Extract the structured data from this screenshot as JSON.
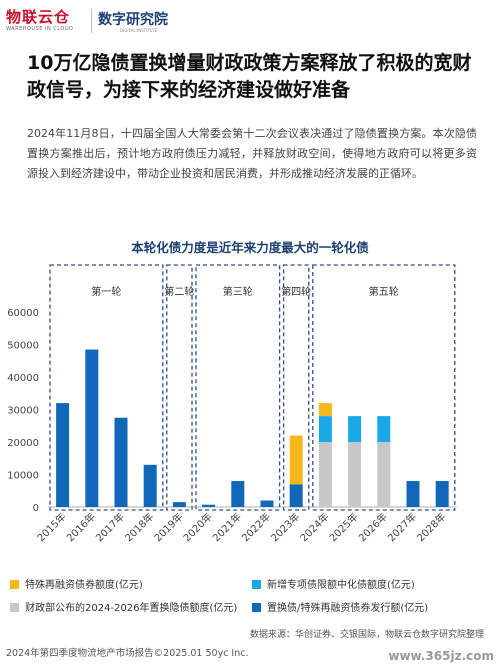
{
  "header": {
    "logo_main": "物联云仓",
    "logo_sub": "WAREHOUSE IN CLOUD",
    "dept": "数字研究院",
    "dept_sub": "DIGITAL INSTITUTE"
  },
  "title": "10万亿隐债置换增量财政政策方案释放了积极的宽财政信号，为接下来的经济建设做好准备",
  "paragraph": "2024年11月8日，十四届全国人大常委会第十二次会议表决通过了隐债置换方案。本次隐债置换方案推出后，预计地方政府债压力减轻，并释放财政空间，使得地方政府可以将更多资源投入到经济建设中，带动企业投资和居民消费，并形成推动经济发展的正循环。",
  "chart_data": {
    "type": "bar",
    "stacked": true,
    "title": "本轮化债力度是近年来力度最大的一轮化债",
    "categories": [
      "2015年",
      "2016年",
      "2017年",
      "2018年",
      "2019年",
      "2020年",
      "2021年",
      "2022年",
      "2023年",
      "2024年",
      "2025年",
      "2026年",
      "2027年",
      "2028年"
    ],
    "ylim": [
      0,
      65000
    ],
    "yticks": [
      0,
      10000,
      20000,
      30000,
      40000,
      50000,
      60000
    ],
    "colors": {
      "special_refi": "#f5b81c",
      "new_special": "#1ba8e8",
      "mof_quota": "#c8c8c8",
      "replacement": "#1268b8"
    },
    "series": [
      {
        "name": "置换债/特殊再融资债券发行额(亿元)",
        "key": "replacement",
        "values": [
          32000,
          48500,
          27500,
          13000,
          1500,
          700,
          8000,
          2000,
          7000,
          0,
          0,
          0,
          8000,
          8000
        ]
      },
      {
        "name": "财政部公布的2024-2026年置换隐债额度(亿元)",
        "key": "mof_quota",
        "values": [
          0,
          0,
          0,
          0,
          0,
          0,
          0,
          0,
          0,
          20000,
          20000,
          20000,
          0,
          0
        ]
      },
      {
        "name": "新增专项债限额中化债额度(亿元)",
        "key": "new_special",
        "values": [
          0,
          0,
          0,
          0,
          0,
          0,
          0,
          0,
          0,
          8000,
          8000,
          8000,
          0,
          0
        ]
      },
      {
        "name": "特殊再融资债券额度(亿元)",
        "key": "special_refi",
        "values": [
          0,
          0,
          0,
          0,
          0,
          0,
          0,
          0,
          15000,
          4000,
          0,
          0,
          0,
          0
        ]
      }
    ],
    "groups": [
      {
        "label": "第一轮",
        "start": 0,
        "end": 3
      },
      {
        "label": "第二轮",
        "start": 4,
        "end": 4
      },
      {
        "label": "第三轮",
        "start": 5,
        "end": 7
      },
      {
        "label": "第四轮",
        "start": 8,
        "end": 8
      },
      {
        "label": "第五轮",
        "start": 9,
        "end": 13
      }
    ]
  },
  "legend": {
    "special_refi": "特殊再融资债券额度(亿元)",
    "new_special": "新增专项债限额中化债额度(亿元)",
    "mof_quota": "财政部公布的2024-2026年置换隐债额度(亿元)",
    "replacement": "置换债/特殊再融资债券发行额(亿元)"
  },
  "source": "数据来源：华创证券、交银国际，物联云仓数字研究院整理",
  "footer": "2024年第四季度物流地产市场报告©2025.01 50yc Inc.",
  "watermark": "www.365jz.com"
}
